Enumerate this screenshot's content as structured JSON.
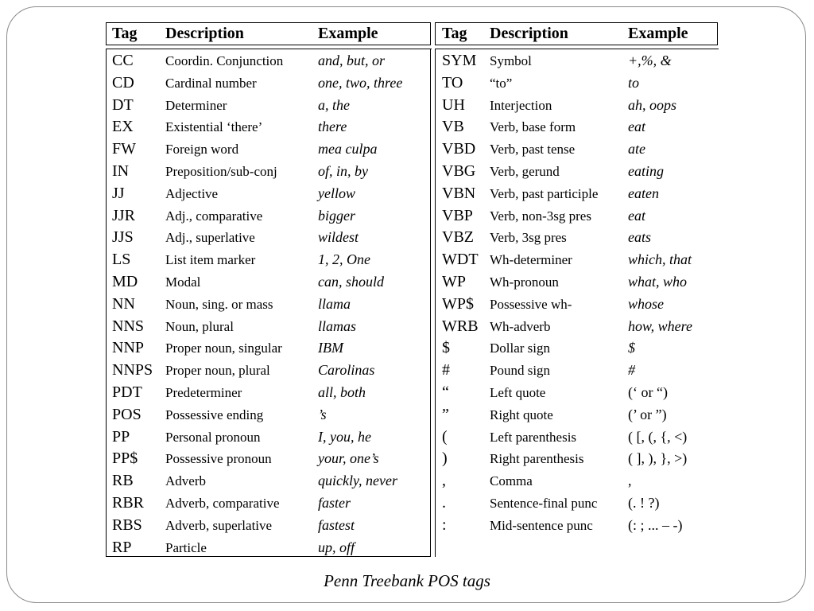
{
  "caption": "Penn Treebank POS tags",
  "headers": {
    "tag": "Tag",
    "description": "Description",
    "example": "Example"
  },
  "left_rows": [
    {
      "tag": "CC",
      "description": "Coordin. Conjunction",
      "example": "and, but, or"
    },
    {
      "tag": "CD",
      "description": "Cardinal number",
      "example": "one, two, three"
    },
    {
      "tag": "DT",
      "description": "Determiner",
      "example": "a, the"
    },
    {
      "tag": "EX",
      "description": "Existential ‘there’",
      "example": "there"
    },
    {
      "tag": "FW",
      "description": "Foreign word",
      "example": "mea culpa"
    },
    {
      "tag": "IN",
      "description": "Preposition/sub-conj",
      "example": "of, in, by"
    },
    {
      "tag": "JJ",
      "description": "Adjective",
      "example": "yellow"
    },
    {
      "tag": "JJR",
      "description": "Adj., comparative",
      "example": "bigger"
    },
    {
      "tag": "JJS",
      "description": "Adj., superlative",
      "example": "wildest"
    },
    {
      "tag": "LS",
      "description": "List item marker",
      "example": "1, 2, One"
    },
    {
      "tag": "MD",
      "description": "Modal",
      "example": "can, should"
    },
    {
      "tag": "NN",
      "description": "Noun, sing. or mass",
      "example": "llama"
    },
    {
      "tag": "NNS",
      "description": "Noun, plural",
      "example": "llamas"
    },
    {
      "tag": "NNP",
      "description": "Proper noun, singular",
      "example": "IBM"
    },
    {
      "tag": "NNPS",
      "description": "Proper noun, plural",
      "example": "Carolinas"
    },
    {
      "tag": "PDT",
      "description": "Predeterminer",
      "example": "all, both"
    },
    {
      "tag": "POS",
      "description": "Possessive ending",
      "example": "’s"
    },
    {
      "tag": "PP",
      "description": "Personal pronoun",
      "example": "I, you, he"
    },
    {
      "tag": "PP$",
      "description": "Possessive pronoun",
      "example": "your, one’s"
    },
    {
      "tag": "RB",
      "description": "Adverb",
      "example": "quickly, never"
    },
    {
      "tag": "RBR",
      "description": "Adverb, comparative",
      "example": "faster"
    },
    {
      "tag": "RBS",
      "description": "Adverb, superlative",
      "example": "fastest"
    },
    {
      "tag": "RP",
      "description": "Particle",
      "example": "up, off"
    }
  ],
  "right_rows": [
    {
      "tag": "SYM",
      "description": "Symbol",
      "example": "+,%, &"
    },
    {
      "tag": "TO",
      "description": "“to”",
      "example": "to"
    },
    {
      "tag": "UH",
      "description": "Interjection",
      "example": "ah, oops"
    },
    {
      "tag": "VB",
      "description": "Verb, base form",
      "example": "eat"
    },
    {
      "tag": "VBD",
      "description": "Verb, past tense",
      "example": "ate"
    },
    {
      "tag": "VBG",
      "description": "Verb, gerund",
      "example": "eating"
    },
    {
      "tag": "VBN",
      "description": "Verb, past participle",
      "example": "eaten"
    },
    {
      "tag": "VBP",
      "description": "Verb, non-3sg pres",
      "example": "eat"
    },
    {
      "tag": "VBZ",
      "description": "Verb, 3sg pres",
      "example": "eats"
    },
    {
      "tag": "WDT",
      "description": "Wh-determiner",
      "example": "which, that"
    },
    {
      "tag": "WP",
      "description": "Wh-pronoun",
      "example": "what, who"
    },
    {
      "tag": "WP$",
      "description": "Possessive wh-",
      "example": "whose"
    },
    {
      "tag": "WRB",
      "description": "Wh-adverb",
      "example": "how, where"
    },
    {
      "tag": "$",
      "description": "Dollar sign",
      "example": "$"
    },
    {
      "tag": "#",
      "description": "Pound sign",
      "example": "#"
    },
    {
      "tag": "“",
      "description": "Left quote",
      "example": "(‘ or “)",
      "plain": true
    },
    {
      "tag": "”",
      "description": "Right quote",
      "example": "(’ or ”)",
      "plain": true
    },
    {
      "tag": "(",
      "description": "Left parenthesis",
      "example": "( [, (, {, <)",
      "plain": true
    },
    {
      "tag": ")",
      "description": "Right parenthesis",
      "example": "( ], ), }, >)",
      "plain": true
    },
    {
      "tag": ",",
      "description": "Comma",
      "example": ",",
      "plain": true
    },
    {
      "tag": ".",
      "description": "Sentence-final punc",
      "example": "(. ! ?)",
      "plain": true
    },
    {
      "tag": ":",
      "description": "Mid-sentence punc",
      "example": "(: ; ... – -)",
      "plain": true
    }
  ]
}
